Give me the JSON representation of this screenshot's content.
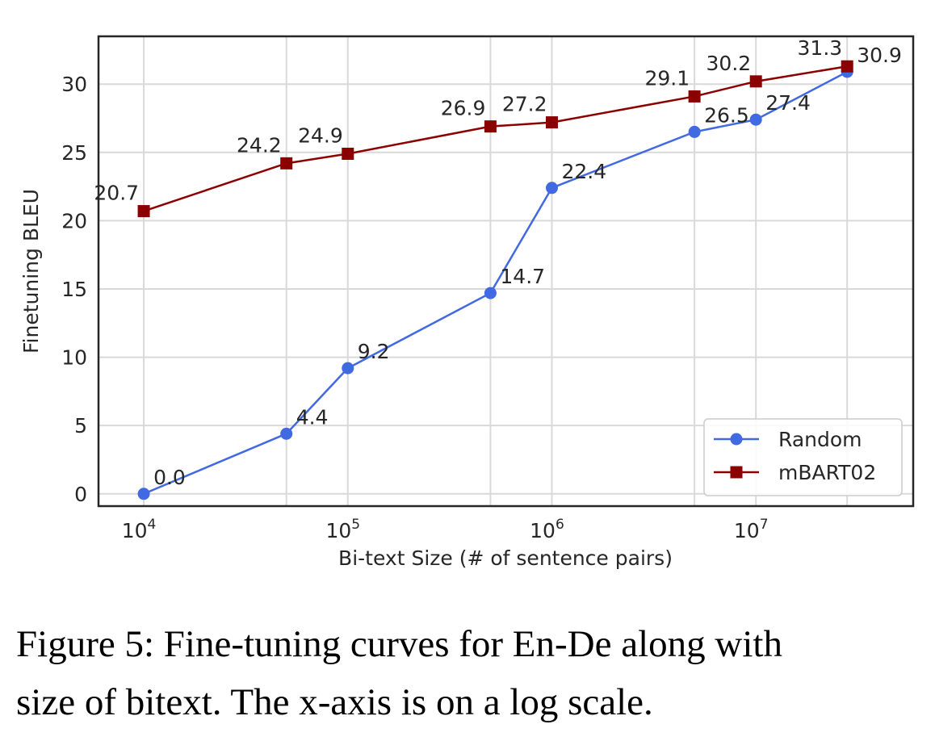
{
  "chart_data": {
    "type": "line",
    "xscale": "log",
    "xlabel": "Bi-text Size (# of sentence pairs)",
    "ylabel": "Finetuning BLEU",
    "xlim": [
      6000,
      59000000
    ],
    "ylim": [
      -0.9,
      33.5
    ],
    "xticks": [
      {
        "value": 10000,
        "base": "10",
        "exp": "4"
      },
      {
        "value": 100000,
        "base": "10",
        "exp": "5"
      },
      {
        "value": 1000000,
        "base": "10",
        "exp": "6"
      },
      {
        "value": 10000000,
        "base": "10",
        "exp": "7"
      }
    ],
    "yticks": [
      0,
      5,
      10,
      15,
      20,
      25,
      30
    ],
    "grid": true,
    "legend_position": "bottom-right",
    "x": [
      10000,
      50000,
      100000,
      500000,
      1000000,
      5000000,
      10000000,
      28000000
    ],
    "series": [
      {
        "name": "Random",
        "color": "#4169e1",
        "marker": "circle",
        "values": [
          0.0,
          4.4,
          9.2,
          14.7,
          22.4,
          26.5,
          27.4,
          30.9
        ],
        "labels": [
          "0.0",
          "4.4",
          "9.2",
          "14.7",
          "22.4",
          "26.5",
          "27.4",
          "30.9"
        ]
      },
      {
        "name": "mBART02",
        "color": "#8b0000",
        "marker": "square",
        "values": [
          20.7,
          24.2,
          24.9,
          26.9,
          27.2,
          29.1,
          30.2,
          31.3
        ],
        "labels": [
          "20.7",
          "24.2",
          "24.9",
          "26.9",
          "27.2",
          "29.1",
          "30.2",
          "31.3"
        ]
      }
    ]
  },
  "caption": {
    "line1": "Figure 5: Fine-tuning curves for En-De along with",
    "line2": "size of bitext. The x-axis is on a log scale."
  }
}
